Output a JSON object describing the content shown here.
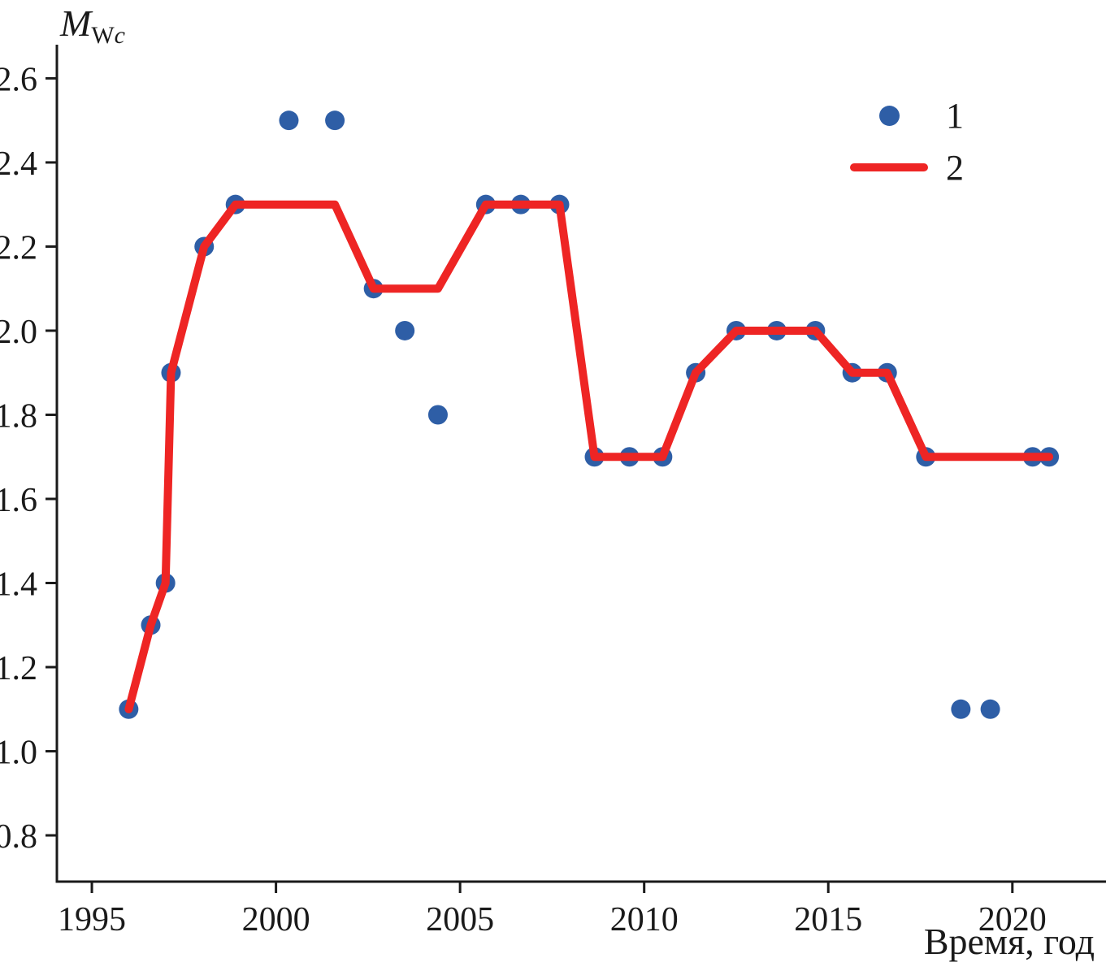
{
  "labels": {
    "y_axis_main": "M",
    "y_axis_sub_roman": "W",
    "y_axis_sub_italic": "c",
    "x_axis": "Время, год"
  },
  "legend": {
    "items": [
      {
        "label": "1",
        "marker": "dot"
      },
      {
        "label": "2",
        "marker": "line"
      }
    ]
  },
  "colors": {
    "dot": "#2e5ea6",
    "line": "#ee2524",
    "axis": "#1a1a1a"
  },
  "chart_data": {
    "type": "scatter",
    "title": "",
    "xlabel": "Время, год",
    "ylabel": "M_Wc",
    "xlim": [
      1994.05,
      2022.3
    ],
    "ylim": [
      0.69,
      2.68
    ],
    "x_ticks": [
      1995,
      2000,
      2005,
      2010,
      2015,
      2020
    ],
    "y_ticks": [
      0.8,
      1.0,
      1.2,
      1.4,
      1.6,
      1.8,
      2.0,
      2.2,
      2.4,
      2.6
    ],
    "grid": false,
    "legend_position": "upper right",
    "series": [
      {
        "name": "1",
        "type": "scatter",
        "color": "#2e5ea6",
        "marker_radius": 12,
        "points": [
          [
            1996.0,
            1.1
          ],
          [
            1996.6,
            1.3
          ],
          [
            1997.0,
            1.4
          ],
          [
            1997.15,
            1.9
          ],
          [
            1998.05,
            2.2
          ],
          [
            1998.9,
            2.3
          ],
          [
            2000.35,
            2.5
          ],
          [
            2001.6,
            2.5
          ],
          [
            2002.65,
            2.1
          ],
          [
            2003.5,
            2.0
          ],
          [
            2004.4,
            1.8
          ],
          [
            2005.7,
            2.3
          ],
          [
            2006.65,
            2.3
          ],
          [
            2007.7,
            2.3
          ],
          [
            2008.65,
            1.7
          ],
          [
            2009.6,
            1.7
          ],
          [
            2010.5,
            1.7
          ],
          [
            2011.4,
            1.9
          ],
          [
            2012.5,
            2.0
          ],
          [
            2013.6,
            2.0
          ],
          [
            2014.65,
            2.0
          ],
          [
            2015.65,
            1.9
          ],
          [
            2016.6,
            1.9
          ],
          [
            2017.65,
            1.7
          ],
          [
            2018.6,
            1.1
          ],
          [
            2019.4,
            1.1
          ],
          [
            2020.55,
            1.7
          ],
          [
            2021.0,
            1.7
          ]
        ]
      },
      {
        "name": "2",
        "type": "line",
        "color": "#ee2524",
        "line_width": 10,
        "points": [
          [
            1996.0,
            1.1
          ],
          [
            1996.6,
            1.3
          ],
          [
            1997.0,
            1.4
          ],
          [
            1997.15,
            1.9
          ],
          [
            1998.05,
            2.2
          ],
          [
            1998.9,
            2.3
          ],
          [
            2001.6,
            2.3
          ],
          [
            2002.65,
            2.1
          ],
          [
            2004.4,
            2.1
          ],
          [
            2005.7,
            2.3
          ],
          [
            2007.7,
            2.3
          ],
          [
            2008.65,
            1.7
          ],
          [
            2010.5,
            1.7
          ],
          [
            2011.4,
            1.9
          ],
          [
            2012.5,
            2.0
          ],
          [
            2014.65,
            2.0
          ],
          [
            2015.65,
            1.9
          ],
          [
            2016.6,
            1.9
          ],
          [
            2017.65,
            1.7
          ],
          [
            2021.0,
            1.7
          ]
        ]
      }
    ]
  }
}
